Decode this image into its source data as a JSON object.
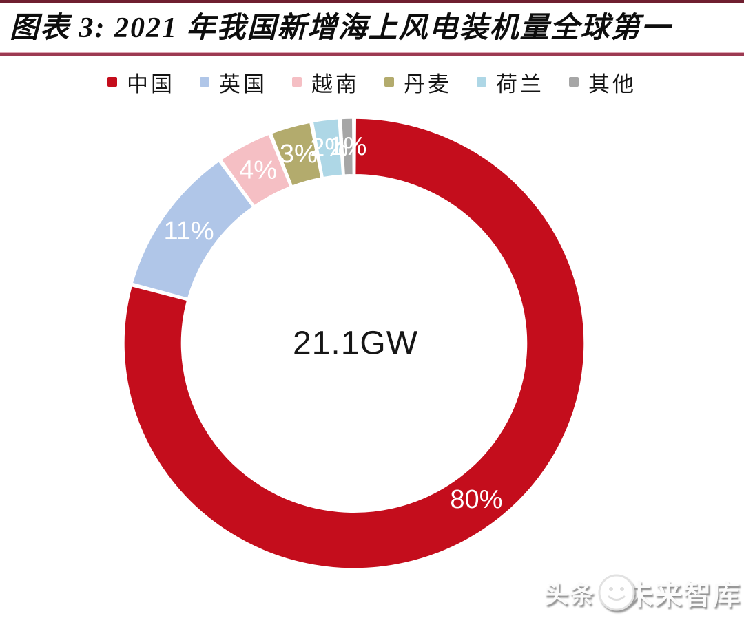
{
  "header": {
    "title": "图表 3: 2021 年我国新增海上风电装机量全球第一"
  },
  "chart_data": {
    "type": "pie",
    "subtype": "donut",
    "title": "2021 年我国新增海上风电装机量全球第一",
    "center_label": "21.1GW",
    "categories": [
      "中国",
      "英国",
      "越南",
      "丹麦",
      "荷兰",
      "其他"
    ],
    "values": [
      80,
      11,
      4,
      3,
      2,
      1
    ],
    "labels": [
      "80%",
      "11%",
      "4%",
      "3%",
      "2%",
      "1%"
    ],
    "colors": [
      "#c40d1c",
      "#b0c6e8",
      "#f5bfc4",
      "#b3ab6d",
      "#aed7e6",
      "#a6a6a6"
    ],
    "start_angle_deg": 0,
    "direction": "clockwise",
    "inner_ratio": 0.75,
    "legend_position": "top",
    "slice_gap_color": "#ffffff"
  },
  "watermark": {
    "prefix": "头条",
    "logo": "smiley-face",
    "name": "未来智库"
  }
}
